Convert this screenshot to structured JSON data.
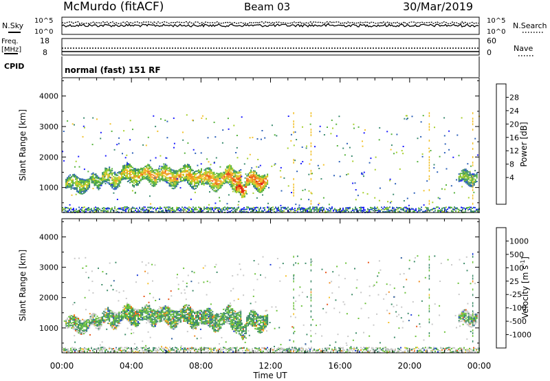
{
  "header": {
    "station": "McMurdo (fitACF)",
    "beam": "Beam 03",
    "date": "30/Mar/2019"
  },
  "noise_panel": {
    "left_label": "N.Sky",
    "right_label": "N.Search",
    "left_ticks": [
      "10^5",
      "10^0"
    ],
    "right_ticks": [
      "10^5",
      "10^0"
    ]
  },
  "freq_panel": {
    "left_label_line1": "Freq.",
    "left_label_line2": "[MHz]",
    "right_label": "Nave",
    "left_ticks": [
      "18",
      "8"
    ],
    "right_ticks": [
      "60",
      "0"
    ]
  },
  "cpid_panel": {
    "label": "CPID",
    "mode": "normal (fast) 151 RF"
  },
  "chart_data": [
    {
      "type": "heatmap",
      "ylabel": "Slant Range [km]",
      "ylim": [
        180,
        4600
      ],
      "yticks": [
        1000,
        2000,
        3000,
        4000
      ],
      "xlim": [
        "00:00",
        "24:00"
      ],
      "colorbar": {
        "label": "Power [dB]",
        "ticks": [
          "28",
          "24",
          "20",
          "16",
          "12",
          "8",
          "4"
        ],
        "range": [
          0,
          32
        ],
        "colors": [
          "#1a1aff",
          "#2a5fb8",
          "#3a8a6e",
          "#55b23c",
          "#a6cf2c",
          "#f2c12a",
          "#f08a1e",
          "#e84a16",
          "#e01010"
        ]
      }
    },
    {
      "type": "heatmap",
      "ylabel": "Slant Range [km]",
      "ylim": [
        180,
        4600
      ],
      "yticks": [
        1000,
        2000,
        3000,
        4000
      ],
      "xlim": [
        "00:00",
        "24:00"
      ],
      "colorbar": {
        "label": "Velocity [m s^-1]",
        "ticks": [
          "1000",
          "500",
          "100",
          "25",
          "-25",
          "-100",
          "-500",
          "-1000"
        ],
        "colors": [
          "#1a3ad8",
          "#2f5fa0",
          "#3d8c68",
          "#6cc23a",
          "#c8c8c8",
          "#f5c02a",
          "#f08a1e",
          "#e8561a",
          "#e01414"
        ]
      }
    }
  ],
  "x_axis": {
    "label": "Time UT",
    "ticks": [
      "00:00",
      "04:00",
      "08:00",
      "12:00",
      "16:00",
      "20:00",
      "00:00"
    ]
  }
}
